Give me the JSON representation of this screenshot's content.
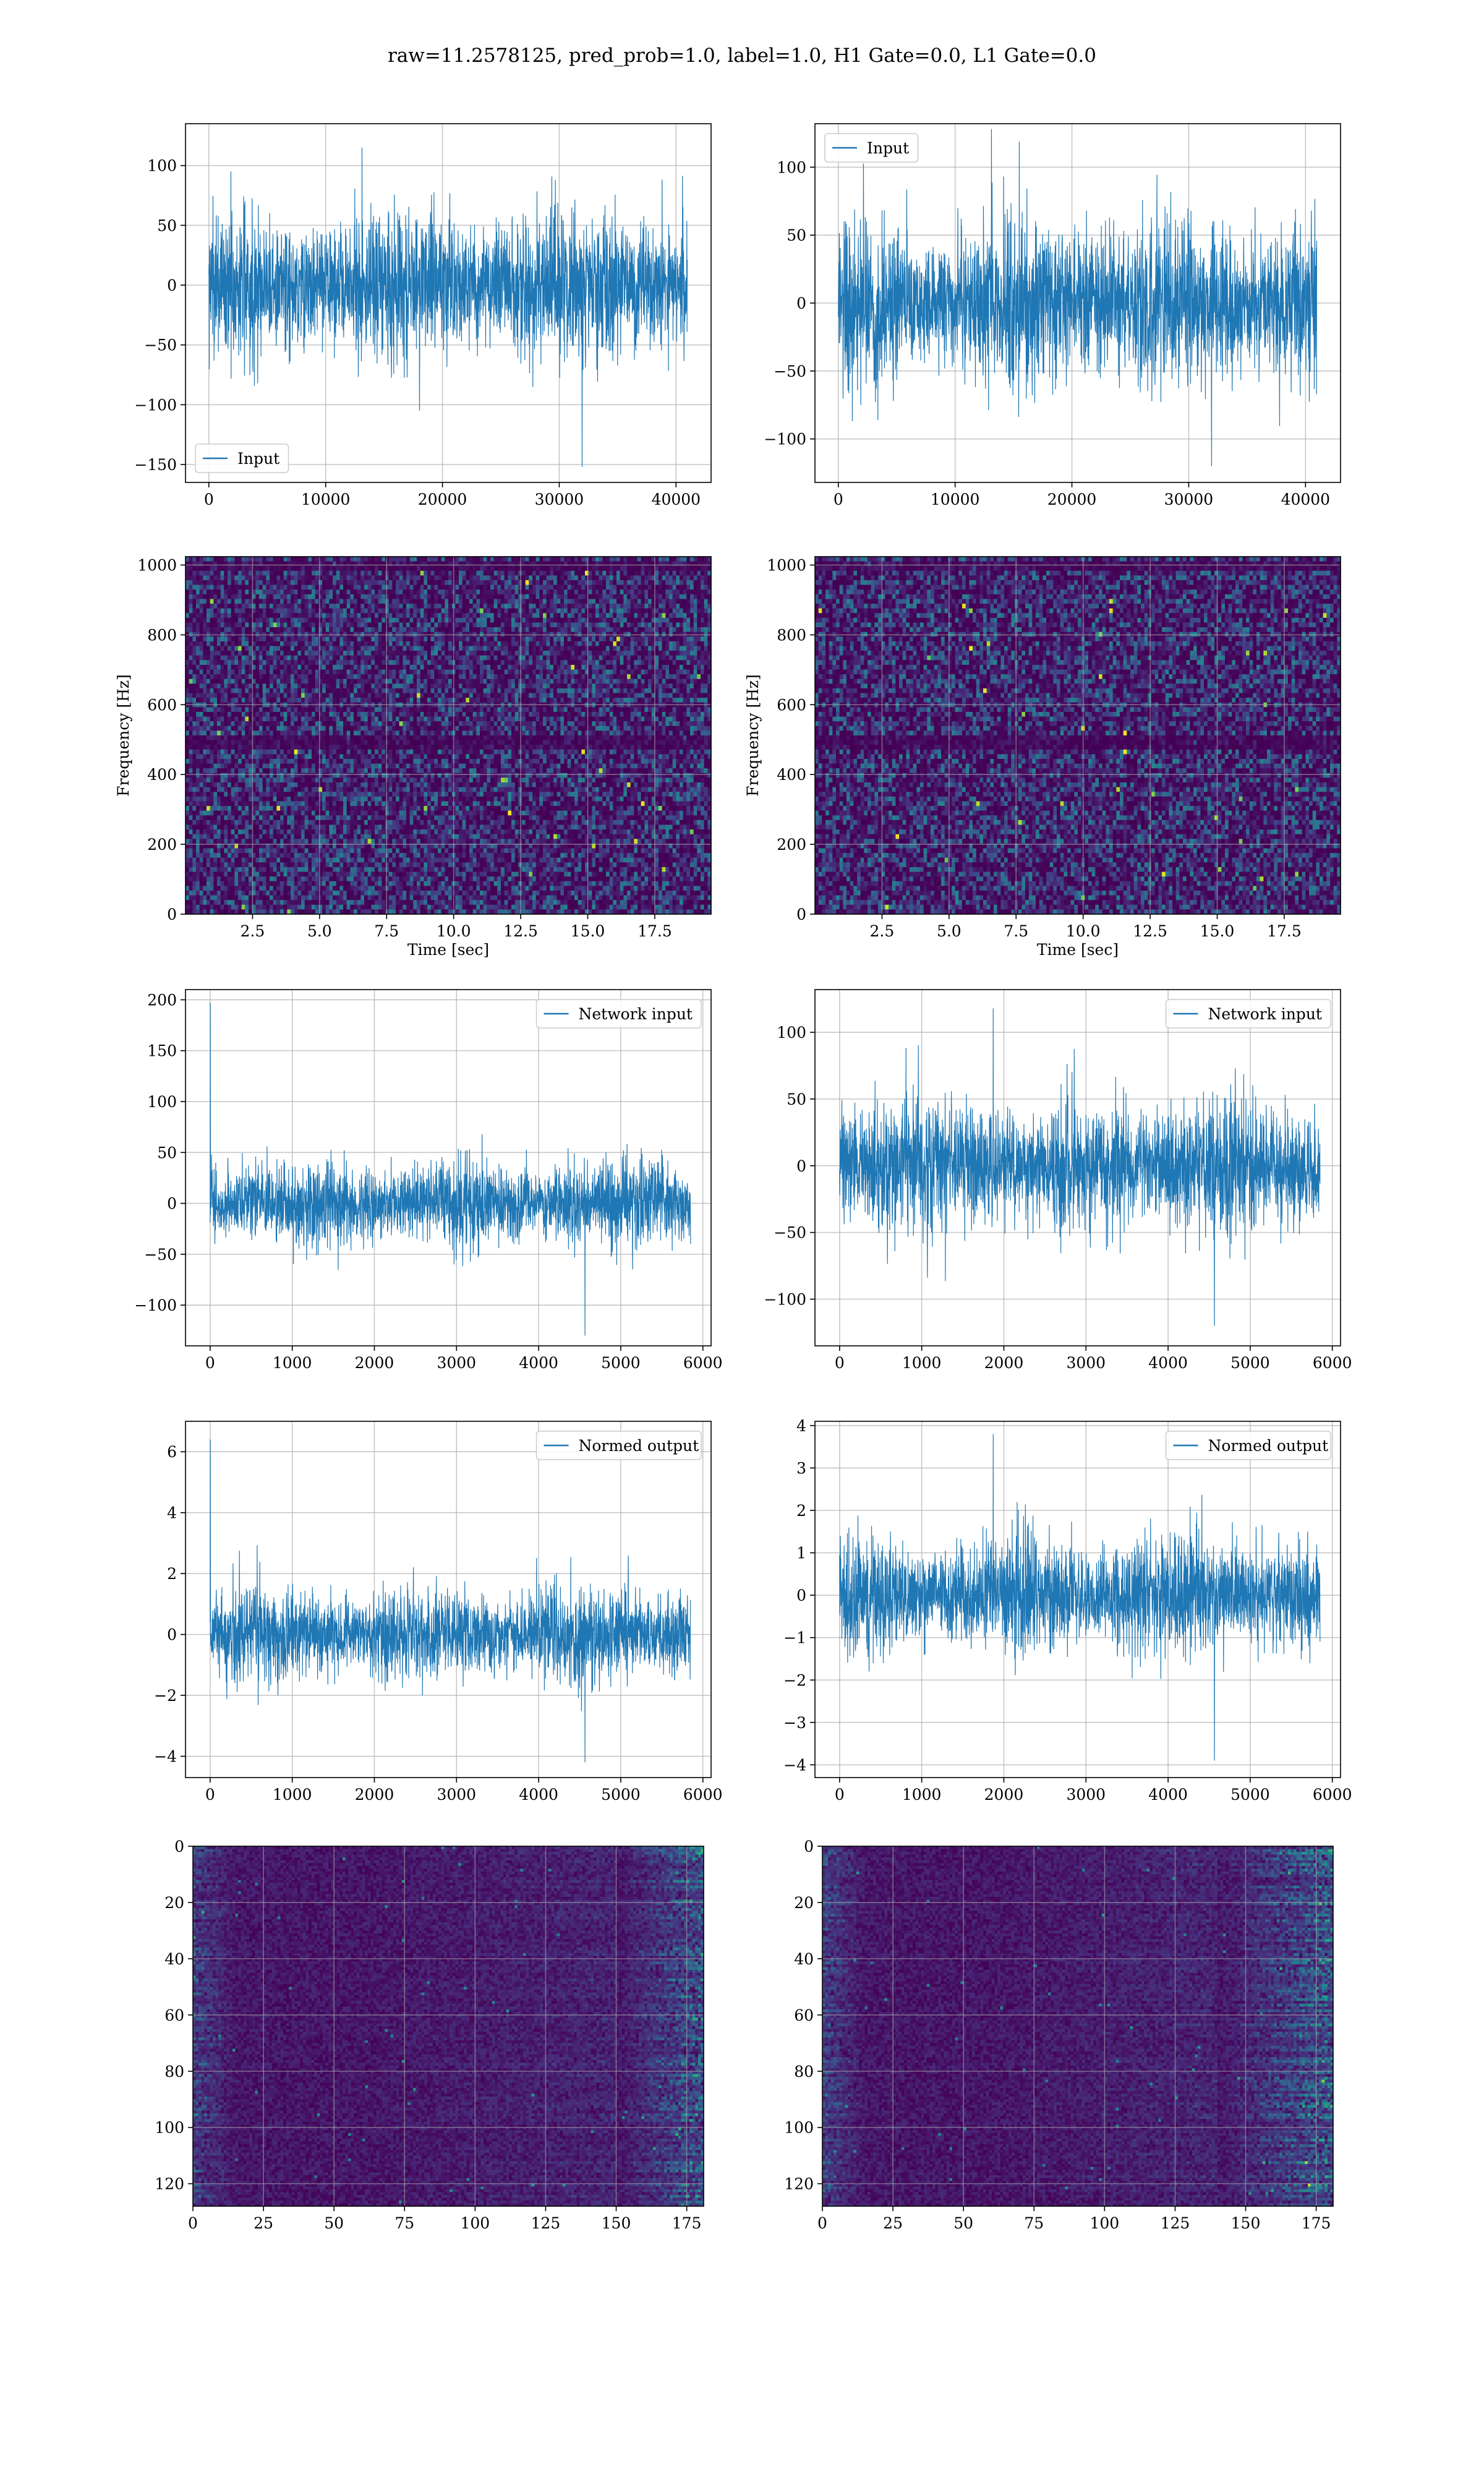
{
  "title": "raw=11.2578125, pred_prob=1.0, label=1.0, H1 Gate=0.0, L1 Gate=0.0",
  "colors": {
    "line": "#1f77b4",
    "grid": "#b0b0b0",
    "spine": "#000000",
    "viridis_low": "#440154",
    "viridis_high": "#fde725"
  },
  "chart_data": [
    {
      "id": "h1-input",
      "type": "line",
      "series": [
        {
          "name": "Input",
          "x_range": [
            0,
            40959
          ],
          "y_envelope": [
            -85,
            85
          ],
          "noise": "gaussian"
        }
      ],
      "xlim": [
        -2000,
        43000
      ],
      "ylim": [
        -165,
        135
      ],
      "legend": "lower left",
      "x_ticks": [
        0,
        10000,
        20000,
        30000,
        40000
      ],
      "y_ticks": [
        -150,
        -100,
        -50,
        0,
        50,
        100
      ],
      "x_tick_labels": [
        "0",
        "10000",
        "20000",
        "30000",
        "40000"
      ],
      "y_tick_labels": [
        "−150",
        "−100",
        "−50",
        "0",
        "50",
        "100"
      ],
      "extremes": {
        "min": -152,
        "max": 115
      },
      "grid": true
    },
    {
      "id": "l1-input",
      "type": "line",
      "series": [
        {
          "name": "Input",
          "x_range": [
            0,
            40959
          ],
          "y_envelope": [
            -85,
            85
          ],
          "noise": "gaussian"
        }
      ],
      "xlim": [
        -2000,
        43000
      ],
      "ylim": [
        -132,
        132
      ],
      "legend": "upper left",
      "x_ticks": [
        0,
        10000,
        20000,
        30000,
        40000
      ],
      "y_ticks": [
        -100,
        -50,
        0,
        50,
        100
      ],
      "x_tick_labels": [
        "0",
        "10000",
        "20000",
        "30000",
        "40000"
      ],
      "y_tick_labels": [
        "−100",
        "−50",
        "0",
        "50",
        "100"
      ],
      "extremes": {
        "min": -120,
        "max": 128
      },
      "grid": true
    },
    {
      "id": "h1-spectrogram",
      "type": "heatmap",
      "xlim": [
        0,
        19.6
      ],
      "ylim": [
        0,
        1024
      ],
      "xlabel": "Time [sec]",
      "ylabel": "Frequency [Hz]",
      "x_ticks": [
        2.5,
        5.0,
        7.5,
        10.0,
        12.5,
        15.0,
        17.5
      ],
      "y_ticks": [
        0,
        200,
        400,
        600,
        800,
        1000
      ],
      "x_tick_labels": [
        "2.5",
        "5.0",
        "7.5",
        "10.0",
        "12.5",
        "15.0",
        "17.5"
      ],
      "y_tick_labels": [
        "0",
        "200",
        "400",
        "600",
        "800",
        "1000"
      ],
      "colormap": "viridis",
      "dark_bands_hz": [
        500,
        480,
        1000
      ],
      "grid": true
    },
    {
      "id": "l1-spectrogram",
      "type": "heatmap",
      "xlim": [
        0,
        19.6
      ],
      "ylim": [
        0,
        1024
      ],
      "xlabel": "Time [sec]",
      "ylabel": "Frequency [Hz]",
      "x_ticks": [
        2.5,
        5.0,
        7.5,
        10.0,
        12.5,
        15.0,
        17.5
      ],
      "y_ticks": [
        0,
        200,
        400,
        600,
        800,
        1000
      ],
      "x_tick_labels": [
        "2.5",
        "5.0",
        "7.5",
        "10.0",
        "12.5",
        "15.0",
        "17.5"
      ],
      "y_tick_labels": [
        "0",
        "200",
        "400",
        "600",
        "800",
        "1000"
      ],
      "colormap": "viridis",
      "dark_bands_hz": [
        500,
        480,
        1000
      ],
      "grid": true
    },
    {
      "id": "h1-network-input",
      "type": "line",
      "series": [
        {
          "name": "Network input",
          "x_range": [
            0,
            5850
          ],
          "y_envelope": [
            -60,
            60
          ],
          "noise": "gaussian"
        }
      ],
      "xlim": [
        -300,
        6100
      ],
      "ylim": [
        -140,
        210
      ],
      "legend": "upper right",
      "x_ticks": [
        0,
        1000,
        2000,
        3000,
        4000,
        5000,
        6000
      ],
      "y_ticks": [
        -100,
        -50,
        0,
        50,
        100,
        150,
        200
      ],
      "x_tick_labels": [
        "0",
        "1000",
        "2000",
        "3000",
        "4000",
        "5000",
        "6000"
      ],
      "y_tick_labels": [
        "−100",
        "−50",
        "0",
        "50",
        "100",
        "150",
        "200"
      ],
      "extremes": {
        "min": -130,
        "max": 197,
        "spike_x": 5
      },
      "grid": true
    },
    {
      "id": "l1-network-input",
      "type": "line",
      "series": [
        {
          "name": "Network input",
          "x_range": [
            0,
            5850
          ],
          "y_envelope": [
            -70,
            70
          ],
          "noise": "gaussian"
        }
      ],
      "xlim": [
        -300,
        6100
      ],
      "ylim": [
        -135,
        132
      ],
      "legend": "upper right",
      "x_ticks": [
        0,
        1000,
        2000,
        3000,
        4000,
        5000,
        6000
      ],
      "y_ticks": [
        -100,
        -50,
        0,
        50,
        100
      ],
      "x_tick_labels": [
        "0",
        "1000",
        "2000",
        "3000",
        "4000",
        "5000",
        "6000"
      ],
      "y_tick_labels": [
        "−100",
        "−50",
        "0",
        "50",
        "100"
      ],
      "extremes": {
        "min": -120,
        "max": 118
      },
      "grid": true
    },
    {
      "id": "h1-normed-output",
      "type": "line",
      "series": [
        {
          "name": "Normed output",
          "x_range": [
            0,
            5850
          ],
          "y_envelope": [
            -2.1,
            2.1
          ],
          "noise": "gaussian"
        }
      ],
      "xlim": [
        -300,
        6100
      ],
      "ylim": [
        -4.7,
        7.0
      ],
      "legend": "upper right",
      "x_ticks": [
        0,
        1000,
        2000,
        3000,
        4000,
        5000,
        6000
      ],
      "y_ticks": [
        -4,
        -2,
        0,
        2,
        4,
        6
      ],
      "x_tick_labels": [
        "0",
        "1000",
        "2000",
        "3000",
        "4000",
        "5000",
        "6000"
      ],
      "y_tick_labels": [
        "−4",
        "−2",
        "0",
        "2",
        "4",
        "6"
      ],
      "extremes": {
        "min": -4.2,
        "max": 6.4,
        "spike_x": 5
      },
      "grid": true
    },
    {
      "id": "l1-normed-output",
      "type": "line",
      "series": [
        {
          "name": "Normed output",
          "x_range": [
            0,
            5850
          ],
          "y_envelope": [
            -1.9,
            1.9
          ],
          "noise": "gaussian"
        }
      ],
      "xlim": [
        -300,
        6100
      ],
      "ylim": [
        -4.3,
        4.1
      ],
      "legend": "upper right",
      "x_ticks": [
        0,
        1000,
        2000,
        3000,
        4000,
        5000,
        6000
      ],
      "y_ticks": [
        -4,
        -3,
        -2,
        -1,
        0,
        1,
        2,
        3,
        4
      ],
      "x_tick_labels": [
        "0",
        "1000",
        "2000",
        "3000",
        "4000",
        "5000",
        "6000"
      ],
      "y_tick_labels": [
        "−4",
        "−3",
        "−2",
        "−1",
        "0",
        "1",
        "2",
        "3",
        "4"
      ],
      "extremes": {
        "min": -3.9,
        "max": 3.8
      },
      "grid": true
    },
    {
      "id": "h1-feature-map",
      "type": "heatmap",
      "xlim": [
        0,
        181
      ],
      "ylim": [
        128,
        0
      ],
      "x_ticks": [
        0,
        25,
        50,
        75,
        100,
        125,
        150,
        175
      ],
      "y_ticks": [
        0,
        20,
        40,
        60,
        80,
        100,
        120
      ],
      "x_tick_labels": [
        "0",
        "25",
        "50",
        "75",
        "100",
        "125",
        "150",
        "175"
      ],
      "y_tick_labels": [
        "0",
        "20",
        "40",
        "60",
        "80",
        "100",
        "120"
      ],
      "colormap": "viridis",
      "rows": 128,
      "cols": 181,
      "bright_cols": [
        [
          0,
          15
        ],
        [
          150,
          181
        ]
      ],
      "grid": true
    },
    {
      "id": "l1-feature-map",
      "type": "heatmap",
      "xlim": [
        0,
        181
      ],
      "ylim": [
        128,
        0
      ],
      "x_ticks": [
        0,
        25,
        50,
        75,
        100,
        125,
        150,
        175
      ],
      "y_ticks": [
        0,
        20,
        40,
        60,
        80,
        100,
        120
      ],
      "x_tick_labels": [
        "0",
        "25",
        "50",
        "75",
        "100",
        "125",
        "150",
        "175"
      ],
      "y_tick_labels": [
        "0",
        "20",
        "40",
        "60",
        "80",
        "100",
        "120"
      ],
      "colormap": "viridis",
      "rows": 128,
      "cols": 181,
      "bright_cols": [
        [
          0,
          15
        ],
        [
          140,
          181
        ]
      ],
      "grid": true
    }
  ]
}
